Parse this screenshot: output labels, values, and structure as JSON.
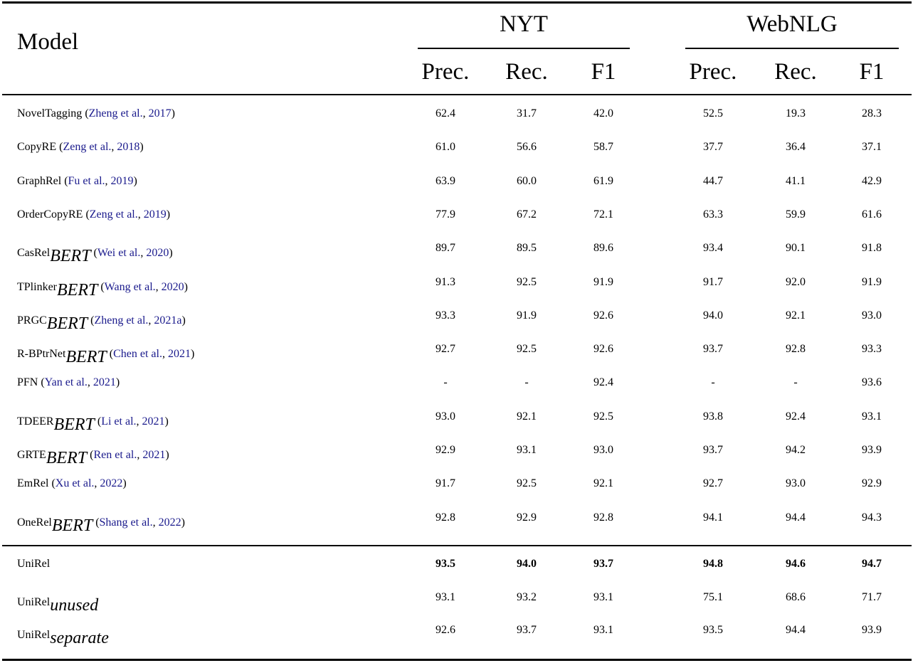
{
  "header": {
    "model": "Model",
    "groups": [
      "NYT",
      "WebNLG"
    ],
    "subcols": [
      "Prec.",
      "Rec.",
      "F1",
      "Prec.",
      "Rec.",
      "F1"
    ]
  },
  "rows": [
    {
      "name": "NovelTagging",
      "sub": "",
      "cite_open": " (",
      "cite_auth": "Zheng et al.",
      "cite_sep": ", ",
      "cite_year": "2017",
      "cite_close": ")",
      "values": [
        "62.4",
        "31.7",
        "42.0",
        "52.5",
        "19.3",
        "28.3"
      ]
    },
    {
      "name": "CopyRE",
      "sub": "",
      "cite_open": " (",
      "cite_auth": "Zeng et al.",
      "cite_sep": ", ",
      "cite_year": "2018",
      "cite_close": ")",
      "values": [
        "61.0",
        "56.6",
        "58.7",
        "37.7",
        "36.4",
        "37.1"
      ]
    },
    {
      "name": "GraphRel",
      "sub": "",
      "cite_open": " (",
      "cite_auth": "Fu et al.",
      "cite_sep": ", ",
      "cite_year": "2019",
      "cite_close": ")",
      "values": [
        "63.9",
        "60.0",
        "61.9",
        "44.7",
        "41.1",
        "42.9"
      ]
    },
    {
      "name": "OrderCopyRE",
      "sub": "",
      "cite_open": " (",
      "cite_auth": "Zeng et al.",
      "cite_sep": ", ",
      "cite_year": "2019",
      "cite_close": ")",
      "values": [
        "77.9",
        "67.2",
        "72.1",
        "63.3",
        "59.9",
        "61.6"
      ]
    },
    {
      "name": "CasRel",
      "sub": "BERT",
      "cite_open": " (",
      "cite_auth": "Wei et al.",
      "cite_sep": ", ",
      "cite_year": "2020",
      "cite_close": ")",
      "values": [
        "89.7",
        "89.5",
        "89.6",
        "93.4",
        "90.1",
        "91.8"
      ]
    },
    {
      "name": "TPlinker",
      "sub": "BERT",
      "cite_open": " (",
      "cite_auth": "Wang et al.",
      "cite_sep": ", ",
      "cite_year": "2020",
      "cite_close": ")",
      "values": [
        "91.3",
        "92.5",
        "91.9",
        "91.7",
        "92.0",
        "91.9"
      ]
    },
    {
      "name": "PRGC",
      "sub": "BERT",
      "cite_open": " (",
      "cite_auth": "Zheng et al.",
      "cite_sep": ", ",
      "cite_year": "2021a",
      "cite_close": ")",
      "values": [
        "93.3",
        "91.9",
        "92.6",
        "94.0",
        "92.1",
        "93.0"
      ]
    },
    {
      "name": "R-BPtrNet",
      "sub": "BERT",
      "cite_open": " (",
      "cite_auth": "Chen et al.",
      "cite_sep": ", ",
      "cite_year": "2021",
      "cite_close": ")",
      "values": [
        "92.7",
        "92.5",
        "92.6",
        "93.7",
        "92.8",
        "93.3"
      ]
    },
    {
      "name": "PFN",
      "sub": "",
      "cite_open": " (",
      "cite_auth": "Yan et al.",
      "cite_sep": ", ",
      "cite_year": "2021",
      "cite_close": ")",
      "values": [
        "-",
        "-",
        "92.4",
        "-",
        "-",
        "93.6"
      ]
    },
    {
      "name": "TDEER",
      "sub": "BERT",
      "cite_open": " (",
      "cite_auth": "Li et al.",
      "cite_sep": ", ",
      "cite_year": "2021",
      "cite_close": ")",
      "values": [
        "93.0",
        "92.1",
        "92.5",
        "93.8",
        "92.4",
        "93.1"
      ]
    },
    {
      "name": "GRTE",
      "sub": "BERT",
      "cite_open": " (",
      "cite_auth": "Ren et al.",
      "cite_sep": ", ",
      "cite_year": "2021",
      "cite_close": ")",
      "values": [
        "92.9",
        "93.1",
        "93.0",
        "93.7",
        "94.2",
        "93.9"
      ]
    },
    {
      "name": "EmRel",
      "sub": "",
      "cite_open": " (",
      "cite_auth": "Xu et al.",
      "cite_sep": ", ",
      "cite_year": "2022",
      "cite_close": ")",
      "values": [
        "91.7",
        "92.5",
        "92.1",
        "92.7",
        "93.0",
        "92.9"
      ]
    },
    {
      "name": "OneRel",
      "sub": "BERT",
      "cite_open": " (",
      "cite_auth": "Shang et al.",
      "cite_sep": ", ",
      "cite_year": "2022",
      "cite_close": ")",
      "values": [
        "92.8",
        "92.9",
        "92.8",
        "94.1",
        "94.4",
        "94.3"
      ]
    }
  ],
  "ours": [
    {
      "name": "UniRel",
      "sub": "",
      "bold": true,
      "values": [
        "93.5",
        "94.0",
        "93.7",
        "94.8",
        "94.6",
        "94.7"
      ]
    },
    {
      "name": "UniRel",
      "sub": "unused",
      "bold": false,
      "values": [
        "93.1",
        "93.2",
        "93.1",
        "75.1",
        "68.6",
        "71.7"
      ]
    },
    {
      "name": "UniRel",
      "sub": "separate",
      "bold": false,
      "values": [
        "92.6",
        "93.7",
        "93.1",
        "93.5",
        "94.4",
        "93.9"
      ]
    }
  ],
  "colors": {
    "citation": "#1a1a8c",
    "text": "#000000"
  }
}
